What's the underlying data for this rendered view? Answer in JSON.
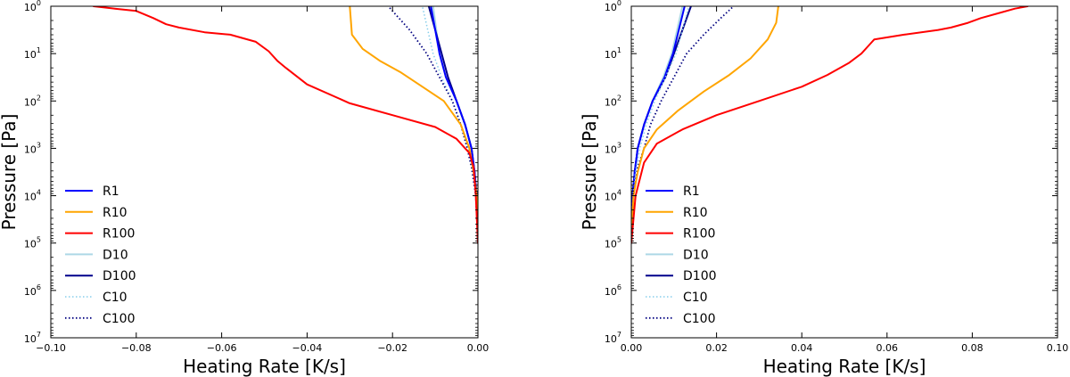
{
  "chart_data": [
    {
      "type": "line",
      "title": "",
      "xlabel": "Heating Rate [K/s]",
      "ylabel": "Pressure [Pa]",
      "xlim": [
        -0.1,
        0.0
      ],
      "ylim_log10": [
        7,
        0
      ],
      "y_scale": "log",
      "y_inverted": true,
      "x_ticks": [
        -0.1,
        -0.08,
        -0.06,
        -0.04,
        -0.02,
        0.0
      ],
      "x_tick_labels": [
        "−0.10",
        "−0.08",
        "−0.06",
        "−0.04",
        "−0.02",
        "0.00"
      ],
      "y_tick_exponents": [
        0,
        1,
        2,
        3,
        4,
        5,
        6,
        7
      ],
      "y_tick_base": "10",
      "legend_location": "lower-left",
      "series": [
        {
          "name": "D10",
          "color": "#add8e6",
          "style": "solid",
          "width": 2,
          "x": [
            0,
            -0.0003,
            -0.0008,
            -0.0015,
            -0.003,
            -0.005,
            -0.0075,
            -0.009,
            -0.0105
          ],
          "log10p": [
            5,
            4,
            3.5,
            3,
            2.5,
            2,
            1.5,
            1,
            0
          ]
        },
        {
          "name": "D100",
          "color": "#00008b",
          "style": "solid",
          "width": 2,
          "x": [
            0,
            -0.0003,
            -0.0008,
            -0.0015,
            -0.003,
            -0.005,
            -0.007,
            -0.0085,
            -0.0115
          ],
          "log10p": [
            5,
            4,
            3.5,
            3,
            2.5,
            2,
            1.5,
            1,
            0
          ]
        },
        {
          "name": "R1",
          "color": "#0000ff",
          "style": "solid",
          "width": 2,
          "x": [
            0,
            -0.0003,
            -0.0008,
            -0.0015,
            -0.003,
            -0.005,
            -0.0075,
            -0.009,
            -0.011
          ],
          "log10p": [
            5,
            4,
            3.5,
            3,
            2.5,
            2,
            1.5,
            1,
            0
          ]
        },
        {
          "name": "C10",
          "color": "#87ceeb",
          "style": "dotted",
          "width": 1.5,
          "x": [
            0,
            -0.0005,
            -0.0012,
            -0.0025,
            -0.004,
            -0.006,
            -0.0085,
            -0.0105,
            -0.013
          ],
          "log10p": [
            5,
            4,
            3.5,
            3,
            2.5,
            2,
            1.5,
            1,
            0
          ]
        },
        {
          "name": "C100",
          "color": "#000080",
          "style": "dotted",
          "width": 1.8,
          "x": [
            0,
            -0.0005,
            -0.0015,
            -0.0025,
            -0.004,
            -0.006,
            -0.009,
            -0.012,
            -0.016,
            -0.021
          ],
          "log10p": [
            5,
            4,
            3.4,
            3,
            2.5,
            2,
            1.5,
            1,
            0.5,
            0
          ]
        },
        {
          "name": "R10",
          "color": "#ffa500",
          "style": "solid",
          "width": 2,
          "x": [
            0,
            -0.0003,
            -0.001,
            -0.002,
            -0.004,
            -0.008,
            -0.013,
            -0.018,
            -0.023,
            -0.027,
            -0.0295,
            -0.03
          ],
          "log10p": [
            5,
            4,
            3.5,
            3,
            2.5,
            2,
            1.7,
            1.4,
            1.15,
            0.9,
            0.6,
            0
          ]
        },
        {
          "name": "R100",
          "color": "#ff0000",
          "style": "solid",
          "width": 2,
          "x": [
            0,
            -0.0005,
            -0.001,
            -0.002,
            -0.005,
            -0.01,
            -0.02,
            -0.03,
            -0.04,
            -0.045,
            -0.047,
            -0.049,
            -0.052,
            -0.058,
            -0.064,
            -0.07,
            -0.073,
            -0.076,
            -0.08,
            -0.085,
            -0.09
          ],
          "log10p": [
            5,
            4,
            3.4,
            3.1,
            2.8,
            2.55,
            2.3,
            2.05,
            1.65,
            1.3,
            1.15,
            0.95,
            0.75,
            0.6,
            0.55,
            0.45,
            0.38,
            0.25,
            0.1,
            0.05,
            0
          ]
        }
      ]
    },
    {
      "type": "line",
      "title": "",
      "xlabel": "Heating Rate [K/s]",
      "ylabel": "Pressure [Pa]",
      "xlim": [
        0.0,
        0.1
      ],
      "ylim_log10": [
        7,
        0
      ],
      "y_scale": "log",
      "y_inverted": true,
      "x_ticks": [
        0.0,
        0.02,
        0.04,
        0.06,
        0.08,
        0.1
      ],
      "x_tick_labels": [
        "0.00",
        "0.02",
        "0.04",
        "0.06",
        "0.08",
        "0.10"
      ],
      "y_tick_exponents": [
        0,
        1,
        2,
        3,
        4,
        5,
        6,
        7
      ],
      "y_tick_base": "10",
      "legend_location": "lower-left",
      "series": [
        {
          "name": "D10",
          "color": "#add8e6",
          "style": "solid",
          "width": 2,
          "x": [
            0,
            0.0003,
            0.0008,
            0.0015,
            0.003,
            0.005,
            0.0075,
            0.0095,
            0.012
          ],
          "log10p": [
            5,
            4,
            3.5,
            3,
            2.5,
            2,
            1.5,
            1,
            0
          ]
        },
        {
          "name": "D100",
          "color": "#00008b",
          "style": "solid",
          "width": 2,
          "x": [
            0,
            0.0003,
            0.0008,
            0.0015,
            0.003,
            0.005,
            0.008,
            0.01,
            0.014
          ],
          "log10p": [
            5,
            4,
            3.5,
            3,
            2.5,
            2,
            1.5,
            1,
            0
          ]
        },
        {
          "name": "R1",
          "color": "#0000ff",
          "style": "solid",
          "width": 2,
          "x": [
            0,
            0.0003,
            0.0008,
            0.0015,
            0.003,
            0.005,
            0.0078,
            0.0098,
            0.0125
          ],
          "log10p": [
            5,
            4,
            3.5,
            3,
            2.5,
            2,
            1.5,
            1,
            0
          ]
        },
        {
          "name": "C10",
          "color": "#87ceeb",
          "style": "dotted",
          "width": 1.5,
          "x": [
            0,
            0.0004,
            0.001,
            0.002,
            0.0035,
            0.0055,
            0.008,
            0.0105,
            0.0135
          ],
          "log10p": [
            5,
            4,
            3.5,
            3,
            2.5,
            2,
            1.5,
            1,
            0
          ]
        },
        {
          "name": "C100",
          "color": "#000080",
          "style": "dotted",
          "width": 1.8,
          "x": [
            0,
            0.0005,
            0.0015,
            0.003,
            0.0045,
            0.007,
            0.01,
            0.013,
            0.017,
            0.021,
            0.024
          ],
          "log10p": [
            5,
            4,
            3.4,
            3,
            2.5,
            2,
            1.5,
            1,
            0.6,
            0.25,
            0
          ]
        },
        {
          "name": "R10",
          "color": "#ffa500",
          "style": "solid",
          "width": 2,
          "x": [
            0,
            0.0005,
            0.0015,
            0.003,
            0.006,
            0.011,
            0.017,
            0.023,
            0.028,
            0.032,
            0.034,
            0.0345
          ],
          "log10p": [
            5,
            4,
            3.5,
            3,
            2.6,
            2.2,
            1.8,
            1.45,
            1.1,
            0.7,
            0.35,
            0
          ]
        },
        {
          "name": "R100",
          "color": "#ff0000",
          "style": "solid",
          "width": 2,
          "x": [
            0,
            0.001,
            0.003,
            0.006,
            0.012,
            0.02,
            0.03,
            0.04,
            0.046,
            0.051,
            0.054,
            0.056,
            0.057,
            0.064,
            0.072,
            0.075,
            0.079,
            0.082,
            0.086,
            0.09,
            0.093
          ],
          "log10p": [
            5,
            4,
            3.3,
            2.9,
            2.6,
            2.3,
            2.0,
            1.7,
            1.45,
            1.2,
            1.0,
            0.8,
            0.7,
            0.6,
            0.5,
            0.45,
            0.35,
            0.25,
            0.15,
            0.05,
            0
          ]
        }
      ]
    }
  ]
}
